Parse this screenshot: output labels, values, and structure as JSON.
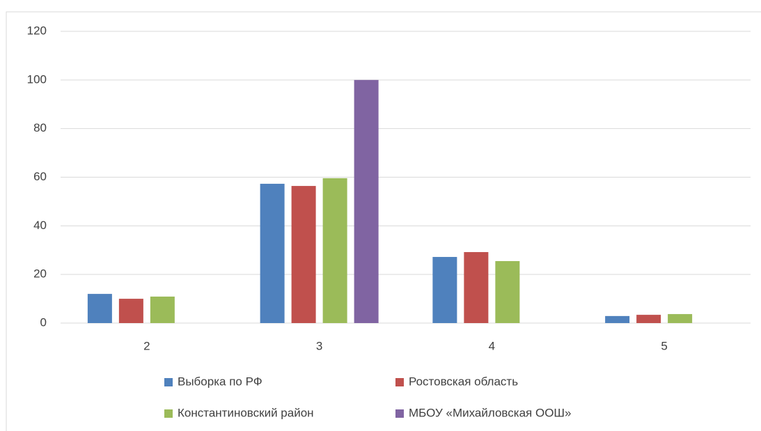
{
  "chart_data": {
    "type": "bar",
    "categories": [
      "2",
      "3",
      "4",
      "5"
    ],
    "series": [
      {
        "name": "Выборка по РФ",
        "color": "#4f81bd",
        "values": [
          12,
          57.3,
          27.2,
          2.9
        ]
      },
      {
        "name": "Ростовская область",
        "color": "#c0504d",
        "values": [
          10,
          56.4,
          29.2,
          3.4
        ]
      },
      {
        "name": "Константиновский район",
        "color": "#9bbb59",
        "values": [
          10.9,
          59.6,
          25.5,
          3.7
        ]
      },
      {
        "name": "МБОУ «Михайловская ООШ»",
        "color": "#8064a2",
        "values": [
          0,
          100,
          0,
          0
        ]
      }
    ],
    "ylim": [
      0,
      120
    ],
    "yticks": [
      0,
      20,
      40,
      60,
      80,
      100,
      120
    ],
    "grid": true,
    "legend": "bottom"
  }
}
